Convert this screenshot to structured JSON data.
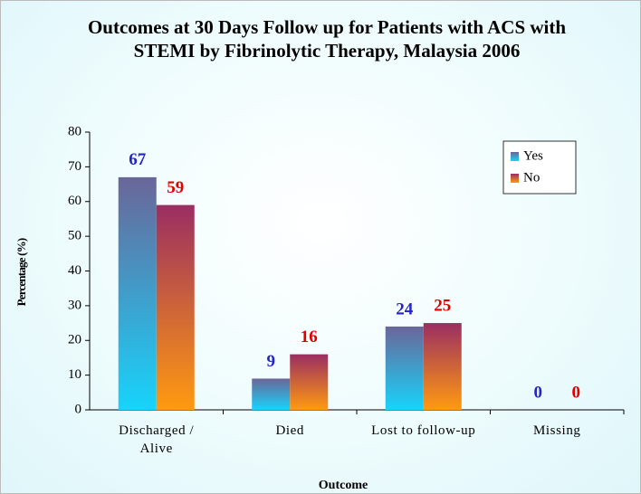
{
  "chart_data": {
    "type": "bar",
    "title": "Outcomes at 30 Days Follow up for Patients with ACS with STEMI by Fibrinolytic Therapy, Malaysia 2006",
    "x_label": "Outcome",
    "y_label": "Percentage (%)",
    "categories": [
      "Discharged / Alive",
      "Died",
      "Lost to follow-up",
      "Missing"
    ],
    "series": [
      {
        "name": "Yes",
        "color": "#17d4fb",
        "gradient_top": "#6a6698",
        "label_color": "#2424c8",
        "values": [
          67,
          9,
          24,
          0
        ]
      },
      {
        "name": "No",
        "color": "#ff9a10",
        "gradient_top": "#9a2e62",
        "label_color": "#e00000",
        "values": [
          59,
          16,
          25,
          0
        ]
      }
    ],
    "ylim": [
      0,
      80
    ],
    "yticks": [
      0,
      10,
      20,
      30,
      40,
      50,
      60,
      70,
      80
    ],
    "legend": "upper right"
  }
}
